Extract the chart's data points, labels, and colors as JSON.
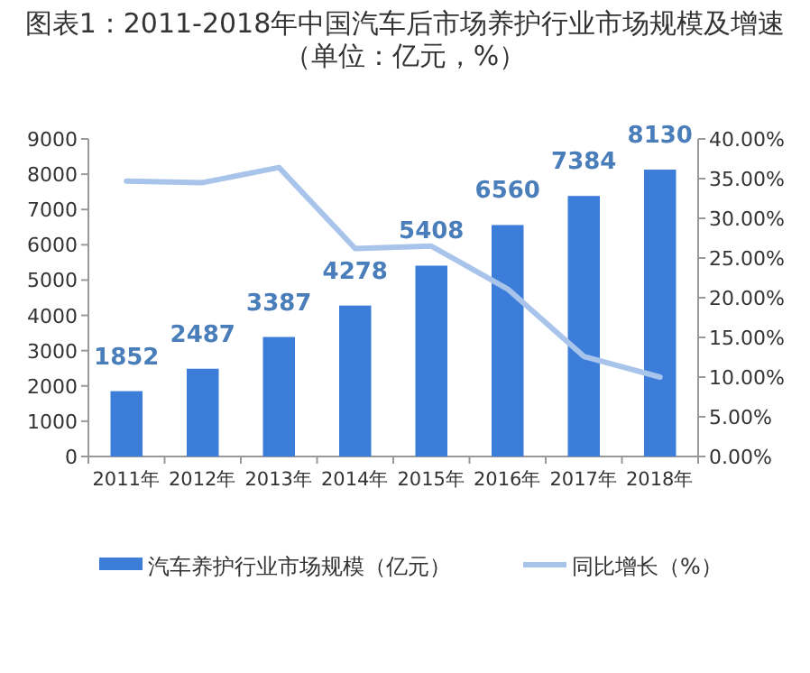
{
  "chart_data": {
    "type": "bar",
    "title": "图表1：2011-2018年中国汽车后市场养护行业市场规模及增速（单位：亿元，%）",
    "categories": [
      "2011年",
      "2012年",
      "2013年",
      "2014年",
      "2015年",
      "2016年",
      "2017年",
      "2018年"
    ],
    "series": [
      {
        "name": "汽车养护行业市场规模（亿元）",
        "color": "#3b7dd8",
        "values": [
          1852,
          2487,
          3387,
          4278,
          5408,
          6560,
          7384,
          8130
        ],
        "value_labels": [
          "1852",
          "2487",
          "3387",
          "4278",
          "5408",
          "6560",
          "7384",
          "8130"
        ]
      },
      {
        "name": "同比增长（%）",
        "type": "line",
        "axis": "y2",
        "color": "#a9c4eb",
        "marker": "none",
        "values": [
          34.7,
          34.5,
          36.4,
          26.2,
          26.5,
          21.1,
          12.6,
          10.0
        ]
      }
    ],
    "ylim": [
      0,
      9000
    ],
    "yticks": [
      0,
      1000,
      2000,
      3000,
      4000,
      5000,
      6000,
      7000,
      8000,
      9000
    ],
    "y2lim": [
      0,
      40
    ],
    "y2ticks": [
      {
        "value": 0,
        "label": "0.00%"
      },
      {
        "value": 5,
        "label": "5.00%"
      },
      {
        "value": 10,
        "label": "10.00%"
      },
      {
        "value": 15,
        "label": "15.00%"
      },
      {
        "value": 20,
        "label": "20.00%"
      },
      {
        "value": 25,
        "label": "25.00%"
      },
      {
        "value": 30,
        "label": "30.00%"
      },
      {
        "value": 35,
        "label": "35.00%"
      },
      {
        "value": 40,
        "label": "40.00%"
      }
    ],
    "legend": "bottom",
    "grid": false
  }
}
